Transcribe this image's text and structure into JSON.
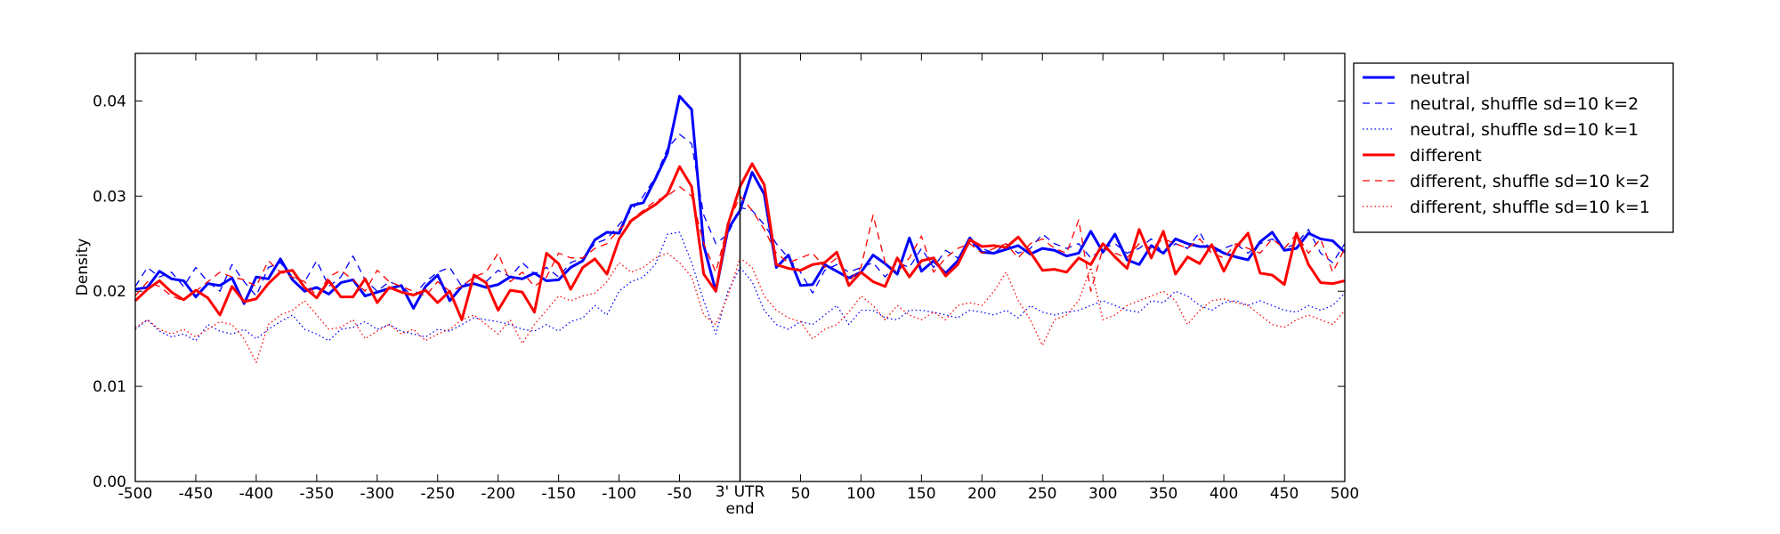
{
  "chart_data": {
    "type": "line",
    "ylabel": "Density",
    "xlim": [
      -500,
      500
    ],
    "ylim": [
      0,
      0.045
    ],
    "xticks": [
      -500,
      -450,
      -400,
      -350,
      -300,
      -250,
      -200,
      -150,
      -100,
      -50,
      {
        "value": 0,
        "label": "3' UTR\nend"
      },
      50,
      100,
      150,
      200,
      250,
      300,
      350,
      400,
      450,
      500
    ],
    "yticks": [
      {
        "value": 0,
        "label": "0.00"
      },
      0.01,
      0.02,
      0.03,
      0.04
    ],
    "vline": 0,
    "x": [
      -500,
      -490,
      -480,
      -470,
      -460,
      -450,
      -440,
      -430,
      -420,
      -410,
      -400,
      -390,
      -380,
      -370,
      -360,
      -350,
      -340,
      -330,
      -320,
      -310,
      -300,
      -290,
      -280,
      -270,
      -260,
      -250,
      -240,
      -230,
      -220,
      -210,
      -200,
      -190,
      -180,
      -170,
      -160,
      -150,
      -140,
      -130,
      -120,
      -110,
      -100,
      -90,
      -80,
      -70,
      -60,
      -50,
      -40,
      -30,
      -20,
      -10,
      0,
      10,
      20,
      30,
      40,
      50,
      60,
      70,
      80,
      90,
      100,
      110,
      120,
      130,
      140,
      150,
      160,
      170,
      180,
      190,
      200,
      210,
      220,
      230,
      240,
      250,
      260,
      270,
      280,
      290,
      300,
      310,
      320,
      330,
      340,
      350,
      360,
      370,
      380,
      390,
      400,
      410,
      420,
      430,
      440,
      450,
      460,
      470,
      480,
      490,
      500
    ],
    "series": [
      {
        "name": "neutral",
        "color": "#0000ff",
        "dash": "solid",
        "width": 3,
        "values": [
          0.0202,
          0.0204,
          0.0221,
          0.0213,
          0.0211,
          0.0194,
          0.0208,
          0.0206,
          0.0214,
          0.0187,
          0.0215,
          0.0213,
          0.0234,
          0.0212,
          0.02,
          0.0204,
          0.0197,
          0.0209,
          0.0212,
          0.0195,
          0.0199,
          0.0203,
          0.0206,
          0.0182,
          0.0205,
          0.0217,
          0.019,
          0.0205,
          0.0208,
          0.0204,
          0.0207,
          0.0215,
          0.0213,
          0.0219,
          0.0211,
          0.0212,
          0.0225,
          0.0232,
          0.0254,
          0.0262,
          0.0261,
          0.029,
          0.0293,
          0.0318,
          0.0345,
          0.0405,
          0.0391,
          0.0248,
          0.02,
          0.0265,
          0.0285,
          0.0325,
          0.0302,
          0.0225,
          0.0238,
          0.0206,
          0.0207,
          0.0228,
          0.0221,
          0.0214,
          0.022,
          0.0238,
          0.0229,
          0.0218,
          0.0256,
          0.0221,
          0.0232,
          0.0219,
          0.0232,
          0.0256,
          0.0241,
          0.024,
          0.0244,
          0.0248,
          0.0239,
          0.0245,
          0.0243,
          0.0237,
          0.024,
          0.0263,
          0.0241,
          0.026,
          0.0233,
          0.0228,
          0.0248,
          0.024,
          0.0255,
          0.025,
          0.0247,
          0.0247,
          0.024,
          0.0236,
          0.0233,
          0.0252,
          0.0262,
          0.0243,
          0.0245,
          0.0261,
          0.0255,
          0.0253,
          0.0241
        ]
      },
      {
        "name": "neutral, shuffle sd=10 k=2",
        "color": "#0000ff",
        "dash": "dashed",
        "width": 1.3,
        "values": [
          0.0205,
          0.0225,
          0.0215,
          0.022,
          0.0205,
          0.0225,
          0.021,
          0.02,
          0.0228,
          0.021,
          0.0195,
          0.0225,
          0.023,
          0.0215,
          0.021,
          0.0232,
          0.0205,
          0.0215,
          0.0237,
          0.0212,
          0.02,
          0.021,
          0.0205,
          0.0195,
          0.021,
          0.022,
          0.0225,
          0.0205,
          0.0215,
          0.021,
          0.0222,
          0.0215,
          0.023,
          0.0218,
          0.0225,
          0.0215,
          0.023,
          0.0235,
          0.025,
          0.0255,
          0.027,
          0.0285,
          0.03,
          0.032,
          0.035,
          0.0365,
          0.0355,
          0.028,
          0.025,
          0.026,
          0.0288,
          0.0285,
          0.027,
          0.025,
          0.0235,
          0.022,
          0.0198,
          0.0222,
          0.0228,
          0.022,
          0.0225,
          0.023,
          0.0215,
          0.023,
          0.0225,
          0.0245,
          0.0225,
          0.0243,
          0.0235,
          0.025,
          0.0245,
          0.024,
          0.025,
          0.024,
          0.0245,
          0.026,
          0.025,
          0.0245,
          0.025,
          0.0235,
          0.0245,
          0.025,
          0.024,
          0.0245,
          0.0255,
          0.024,
          0.025,
          0.0245,
          0.0262,
          0.024,
          0.0245,
          0.025,
          0.024,
          0.025,
          0.0255,
          0.0245,
          0.025,
          0.0265,
          0.024,
          0.023,
          0.025
        ]
      },
      {
        "name": "neutral, shuffle sd=10 k=1",
        "color": "#0000ff",
        "dash": "dotted",
        "width": 1.3,
        "values": [
          0.016,
          0.017,
          0.0158,
          0.0152,
          0.0155,
          0.0148,
          0.0165,
          0.0158,
          0.0155,
          0.016,
          0.015,
          0.016,
          0.0168,
          0.0175,
          0.016,
          0.0155,
          0.0148,
          0.016,
          0.0162,
          0.0168,
          0.016,
          0.0165,
          0.0158,
          0.0155,
          0.0152,
          0.016,
          0.0158,
          0.0165,
          0.0172,
          0.017,
          0.0168,
          0.0165,
          0.016,
          0.0158,
          0.0165,
          0.0158,
          0.0168,
          0.0172,
          0.0185,
          0.0175,
          0.02,
          0.021,
          0.0215,
          0.0228,
          0.026,
          0.0262,
          0.023,
          0.019,
          0.0155,
          0.02,
          0.0225,
          0.021,
          0.018,
          0.0165,
          0.016,
          0.0168,
          0.0165,
          0.0175,
          0.0185,
          0.0165,
          0.018,
          0.018,
          0.0172,
          0.017,
          0.018,
          0.018,
          0.0178,
          0.0175,
          0.0172,
          0.018,
          0.0178,
          0.0175,
          0.018,
          0.0172,
          0.0185,
          0.0178,
          0.0175,
          0.0178,
          0.018,
          0.0185,
          0.019,
          0.0185,
          0.018,
          0.0178,
          0.019,
          0.0188,
          0.02,
          0.0195,
          0.0185,
          0.018,
          0.0188,
          0.019,
          0.0185,
          0.019,
          0.0185,
          0.018,
          0.0178,
          0.0185,
          0.018,
          0.0185,
          0.0198
        ]
      },
      {
        "name": "different",
        "color": "#ff0000",
        "dash": "solid",
        "width": 3,
        "values": [
          0.019,
          0.0202,
          0.0211,
          0.0199,
          0.0191,
          0.0201,
          0.0193,
          0.0175,
          0.0205,
          0.0189,
          0.0192,
          0.0208,
          0.022,
          0.0222,
          0.0204,
          0.0193,
          0.0211,
          0.0194,
          0.0194,
          0.0213,
          0.0188,
          0.0204,
          0.0199,
          0.0196,
          0.0201,
          0.0188,
          0.02,
          0.017,
          0.0217,
          0.0209,
          0.018,
          0.0201,
          0.0199,
          0.0178,
          0.024,
          0.0229,
          0.0202,
          0.0225,
          0.0234,
          0.0218,
          0.0255,
          0.0274,
          0.0283,
          0.0291,
          0.0302,
          0.0331,
          0.031,
          0.0218,
          0.02,
          0.027,
          0.031,
          0.0334,
          0.0312,
          0.0228,
          0.0224,
          0.0222,
          0.0228,
          0.023,
          0.0241,
          0.0206,
          0.022,
          0.021,
          0.0205,
          0.0235,
          0.0215,
          0.0232,
          0.0235,
          0.0216,
          0.0228,
          0.0254,
          0.0247,
          0.0248,
          0.0246,
          0.0257,
          0.0241,
          0.0222,
          0.0223,
          0.022,
          0.0235,
          0.0228,
          0.025,
          0.0236,
          0.0224,
          0.0265,
          0.0235,
          0.0263,
          0.0218,
          0.0236,
          0.0229,
          0.0249,
          0.0221,
          0.0246,
          0.0261,
          0.0219,
          0.0217,
          0.0207,
          0.0261,
          0.0228,
          0.0209,
          0.0208,
          0.0211
        ]
      },
      {
        "name": "different, shuffle sd=10 k=2",
        "color": "#ff0000",
        "dash": "dashed",
        "width": 1.3,
        "values": [
          0.0195,
          0.021,
          0.0205,
          0.0195,
          0.019,
          0.02,
          0.021,
          0.022,
          0.0215,
          0.0212,
          0.0205,
          0.0232,
          0.022,
          0.0215,
          0.021,
          0.0195,
          0.0215,
          0.0222,
          0.0212,
          0.02,
          0.0222,
          0.021,
          0.0205,
          0.02,
          0.0195,
          0.021,
          0.02,
          0.0205,
          0.0215,
          0.022,
          0.024,
          0.021,
          0.022,
          0.0205,
          0.0215,
          0.024,
          0.0235,
          0.0235,
          0.0245,
          0.025,
          0.0265,
          0.0275,
          0.0285,
          0.0295,
          0.03,
          0.031,
          0.03,
          0.025,
          0.022,
          0.027,
          0.03,
          0.0285,
          0.0265,
          0.024,
          0.023,
          0.0235,
          0.024,
          0.0225,
          0.0235,
          0.021,
          0.0225,
          0.028,
          0.023,
          0.022,
          0.0235,
          0.0258,
          0.022,
          0.0235,
          0.0245,
          0.025,
          0.024,
          0.0245,
          0.025,
          0.0235,
          0.025,
          0.0255,
          0.0245,
          0.024,
          0.0275,
          0.02,
          0.0245,
          0.024,
          0.0235,
          0.025,
          0.0245,
          0.0255,
          0.025,
          0.0245,
          0.0255,
          0.024,
          0.0235,
          0.025,
          0.0245,
          0.024,
          0.0255,
          0.0245,
          0.026,
          0.024,
          0.0255,
          0.022,
          0.0245
        ]
      },
      {
        "name": "different, shuffle sd=10 k=1",
        "color": "#ff0000",
        "dash": "dotted",
        "width": 1.3,
        "values": [
          0.0162,
          0.017,
          0.016,
          0.0155,
          0.016,
          0.0152,
          0.016,
          0.0168,
          0.0165,
          0.015,
          0.0125,
          0.0165,
          0.0175,
          0.018,
          0.019,
          0.0175,
          0.016,
          0.0162,
          0.017,
          0.015,
          0.0158,
          0.0165,
          0.0155,
          0.016,
          0.0148,
          0.0155,
          0.016,
          0.017,
          0.0175,
          0.0165,
          0.0155,
          0.017,
          0.0145,
          0.0165,
          0.018,
          0.0195,
          0.019,
          0.0195,
          0.0198,
          0.021,
          0.023,
          0.022,
          0.0225,
          0.0235,
          0.024,
          0.023,
          0.0215,
          0.0175,
          0.0165,
          0.0195,
          0.0235,
          0.0225,
          0.0195,
          0.018,
          0.0172,
          0.0168,
          0.015,
          0.016,
          0.0165,
          0.0178,
          0.0195,
          0.0185,
          0.017,
          0.0185,
          0.0175,
          0.017,
          0.0178,
          0.017,
          0.0185,
          0.0188,
          0.0185,
          0.02,
          0.022,
          0.019,
          0.017,
          0.0143,
          0.017,
          0.0175,
          0.019,
          0.0225,
          0.017,
          0.0175,
          0.0185,
          0.019,
          0.0195,
          0.02,
          0.019,
          0.0165,
          0.018,
          0.019,
          0.0192,
          0.0188,
          0.0185,
          0.0175,
          0.0165,
          0.0162,
          0.017,
          0.0175,
          0.017,
          0.0165,
          0.018
        ]
      }
    ]
  }
}
